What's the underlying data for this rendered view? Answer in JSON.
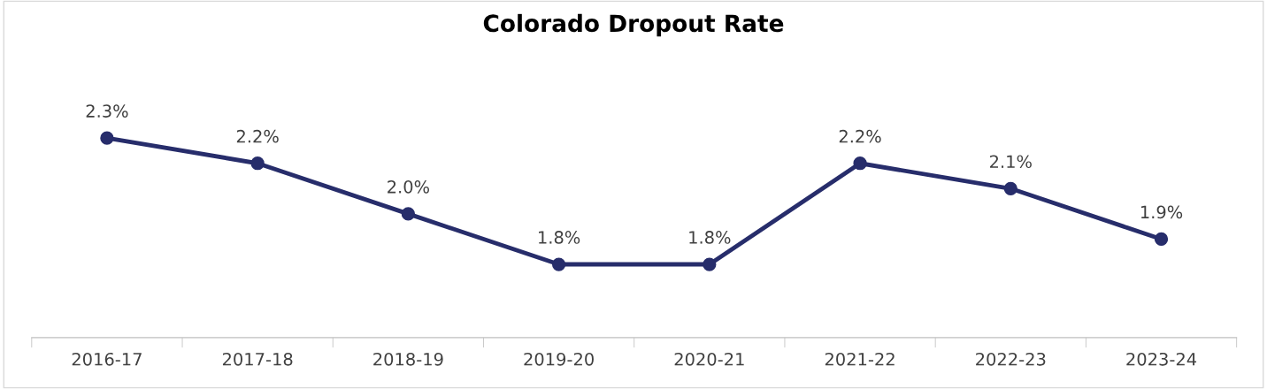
{
  "chart_data": {
    "type": "line",
    "title": "Colorado Dropout Rate",
    "categories": [
      "2016-17",
      "2017-18",
      "2018-19",
      "2019-20",
      "2020-21",
      "2021-22",
      "2022-23",
      "2023-24"
    ],
    "series": [
      {
        "color": "#272d6b",
        "values": [
          2.3,
          2.2,
          2.0,
          1.8,
          1.8,
          2.2,
          2.1,
          1.9
        ],
        "value_labels": [
          "2.3%",
          "2.2%",
          "2.0%",
          "1.8%",
          "1.8%",
          "2.2%",
          "2.1%",
          "1.9%"
        ]
      }
    ],
    "grid": false,
    "marker": "circle",
    "line_style": "solid"
  }
}
